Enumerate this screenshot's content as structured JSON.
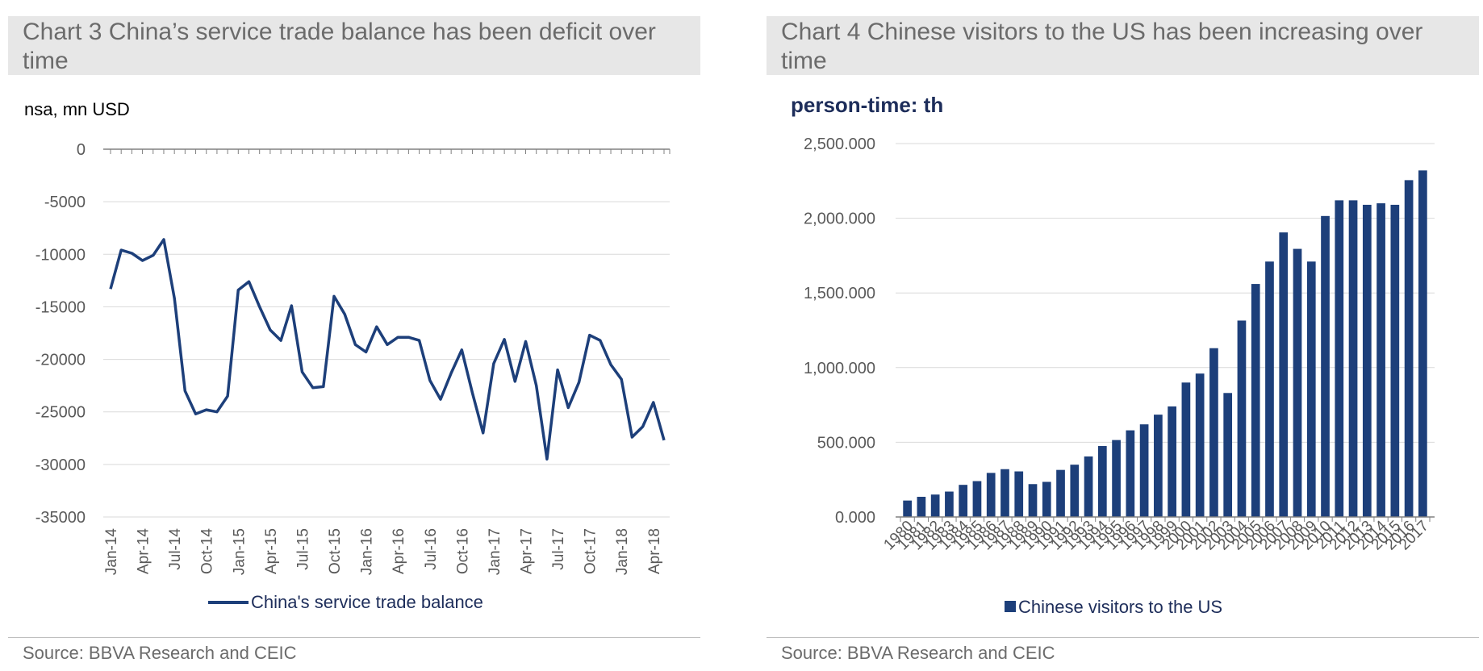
{
  "left_panel": {
    "title": "Chart 3 China’s service trade balance has been deficit over time",
    "unit": "nsa, mn USD",
    "source": "Source: BBVA Research and CEIC"
  },
  "right_panel": {
    "title": "Chart 4 Chinese visitors to the US has been increasing over time",
    "unit": "person-time: th",
    "source": "Source: BBVA Research and CEIC"
  },
  "chart_data": [
    {
      "type": "line",
      "title": "Chart 3 China’s service trade balance has been deficit over time",
      "ylabel": "nsa, mn USD",
      "ylim": [
        -35000,
        0
      ],
      "yticks": [
        0,
        -5000,
        -10000,
        -15000,
        -20000,
        -25000,
        -30000,
        -35000
      ],
      "ytick_labels": [
        "0",
        "-5000",
        "-10000",
        "-15000",
        "-20000",
        "-25000",
        "-30000",
        "-35000"
      ],
      "xtick_labels": [
        "Jan-14",
        "Apr-14",
        "Jul-14",
        "Oct-14",
        "Jan-15",
        "Apr-15",
        "Jul-15",
        "Oct-15",
        "Jan-16",
        "Apr-16",
        "Jul-16",
        "Oct-16",
        "Jan-17",
        "Apr-17",
        "Jul-17",
        "Oct-17",
        "Jan-18",
        "Apr-18"
      ],
      "grid": true,
      "legend_position": "bottom",
      "color": "#1d3f7a",
      "series": [
        {
          "name": "China's service trade balance",
          "x": [
            "Jan-14",
            "Feb-14",
            "Mar-14",
            "Apr-14",
            "May-14",
            "Jun-14",
            "Jul-14",
            "Aug-14",
            "Sep-14",
            "Oct-14",
            "Nov-14",
            "Dec-14",
            "Jan-15",
            "Feb-15",
            "Mar-15",
            "Apr-15",
            "May-15",
            "Jun-15",
            "Jul-15",
            "Aug-15",
            "Sep-15",
            "Oct-15",
            "Nov-15",
            "Dec-15",
            "Jan-16",
            "Feb-16",
            "Mar-16",
            "Apr-16",
            "May-16",
            "Jun-16",
            "Jul-16",
            "Aug-16",
            "Sep-16",
            "Oct-16",
            "Nov-16",
            "Dec-16",
            "Jan-17",
            "Feb-17",
            "Mar-17",
            "Apr-17",
            "May-17",
            "Jun-17",
            "Jul-17",
            "Aug-17",
            "Sep-17",
            "Oct-17",
            "Nov-17",
            "Dec-17",
            "Jan-18",
            "Feb-18",
            "Mar-18",
            "Apr-18",
            "May-18"
          ],
          "values": [
            -13300,
            -9600,
            -9900,
            -10600,
            -10100,
            -8600,
            -14200,
            -23000,
            -25200,
            -24800,
            -25000,
            -23500,
            -13400,
            -12600,
            -15000,
            -17200,
            -18200,
            -14900,
            -21200,
            -22700,
            -22600,
            -14000,
            -15700,
            -18600,
            -19300,
            -16900,
            -18600,
            -17900,
            -17900,
            -18200,
            -22000,
            -23800,
            -21300,
            -19100,
            -23200,
            -27000,
            -20400,
            -18100,
            -22100,
            -18300,
            -22500,
            -29500,
            -21000,
            -24600,
            -22200,
            -17700,
            -18200,
            -20500,
            -21900,
            -27400,
            -26400,
            -24100,
            -27700
          ]
        }
      ]
    },
    {
      "type": "bar",
      "title": "Chart 4 Chinese visitors to the US has been increasing over time",
      "ylabel": "person-time: th",
      "ylim": [
        0,
        2500
      ],
      "yticks": [
        0,
        500,
        1000,
        1500,
        2000,
        2500
      ],
      "ytick_labels": [
        "0.000",
        "500.000",
        "1,000.000",
        "1,500.000",
        "2,000.000",
        "2,500.000"
      ],
      "grid": true,
      "legend_position": "bottom",
      "color": "#1d3f7a",
      "categories": [
        "1980",
        "1981",
        "1982",
        "1983",
        "1984",
        "1985",
        "1986",
        "1987",
        "1988",
        "1989",
        "1990",
        "1991",
        "1992",
        "1993",
        "1994",
        "1995",
        "1996",
        "1997",
        "1998",
        "1999",
        "2000",
        "2001",
        "2002",
        "2003",
        "2004",
        "2005",
        "2006",
        "2007",
        "2008",
        "2009",
        "2010",
        "2011",
        "2012",
        "2013",
        "2014",
        "2015",
        "2016",
        "2017"
      ],
      "series": [
        {
          "name": "Chinese visitors to the US",
          "values": [
            110,
            135,
            150,
            170,
            215,
            240,
            295,
            320,
            305,
            220,
            235,
            315,
            350,
            405,
            475,
            515,
            580,
            620,
            685,
            740,
            900,
            960,
            1130,
            830,
            1315,
            1560,
            1710,
            1905,
            1795,
            1710,
            2015,
            2120,
            2120,
            2090,
            2100,
            2090,
            2255,
            2320
          ]
        }
      ]
    }
  ]
}
